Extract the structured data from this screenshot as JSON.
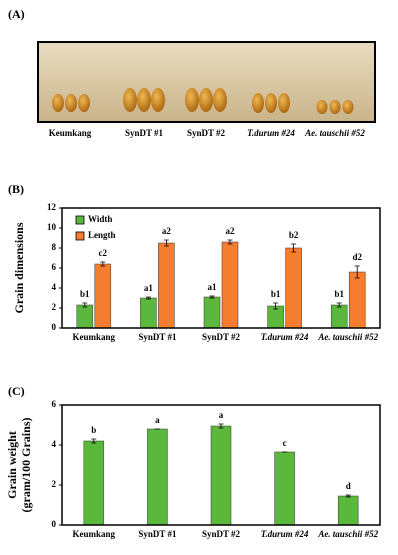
{
  "photo": {
    "label": "(A)",
    "captions": [
      "Keumkang",
      "SynDT #1",
      "SynDT #2",
      "T.durum #24",
      "Ae. tauschii #52"
    ]
  },
  "chart_data": [
    {
      "type": "bar",
      "panel_label": "(B)",
      "y_label": [
        "Grain dimensions"
      ],
      "categories": [
        "Keumkang",
        "SynDT #1",
        "SynDT #2",
        "T.durum #24",
        "Ae. tauschii #52"
      ],
      "series": [
        {
          "name": "Width",
          "color": "#5cb83c",
          "values": [
            2.3,
            3.0,
            3.1,
            2.2,
            2.3
          ],
          "errors": [
            0.2,
            0.1,
            0.1,
            0.3,
            0.2
          ],
          "annotations": [
            "b1",
            "a1",
            "a1",
            "b1",
            "b1"
          ]
        },
        {
          "name": "Length",
          "color": "#f47d30",
          "values": [
            6.4,
            8.5,
            8.6,
            8.0,
            5.6
          ],
          "errors": [
            0.2,
            0.3,
            0.2,
            0.4,
            0.6
          ],
          "annotations": [
            "c2",
            "a2",
            "a2",
            "b2",
            "d2"
          ]
        }
      ],
      "ylim": [
        0,
        12
      ],
      "yticks": [
        0,
        2,
        4,
        6,
        8,
        10,
        12
      ],
      "legend": "top-left"
    },
    {
      "type": "bar",
      "panel_label": "(C)",
      "y_label": [
        "Grain weight",
        "(gram/100 Grains)"
      ],
      "categories": [
        "Keumkang",
        "SynDT #1",
        "SynDT #2",
        "T.durum #24",
        "Ae. tauschii #52"
      ],
      "series": [
        {
          "color": "#5cb83c",
          "values": [
            4.2,
            4.8,
            4.95,
            3.65,
            1.45
          ],
          "errors": [
            0.1,
            0,
            0.1,
            0,
            0.05
          ],
          "annotations": [
            "b",
            "a",
            "a",
            "c",
            "d"
          ]
        }
      ],
      "ylim": [
        0,
        6
      ],
      "yticks": [
        0,
        2,
        4,
        6
      ]
    }
  ]
}
